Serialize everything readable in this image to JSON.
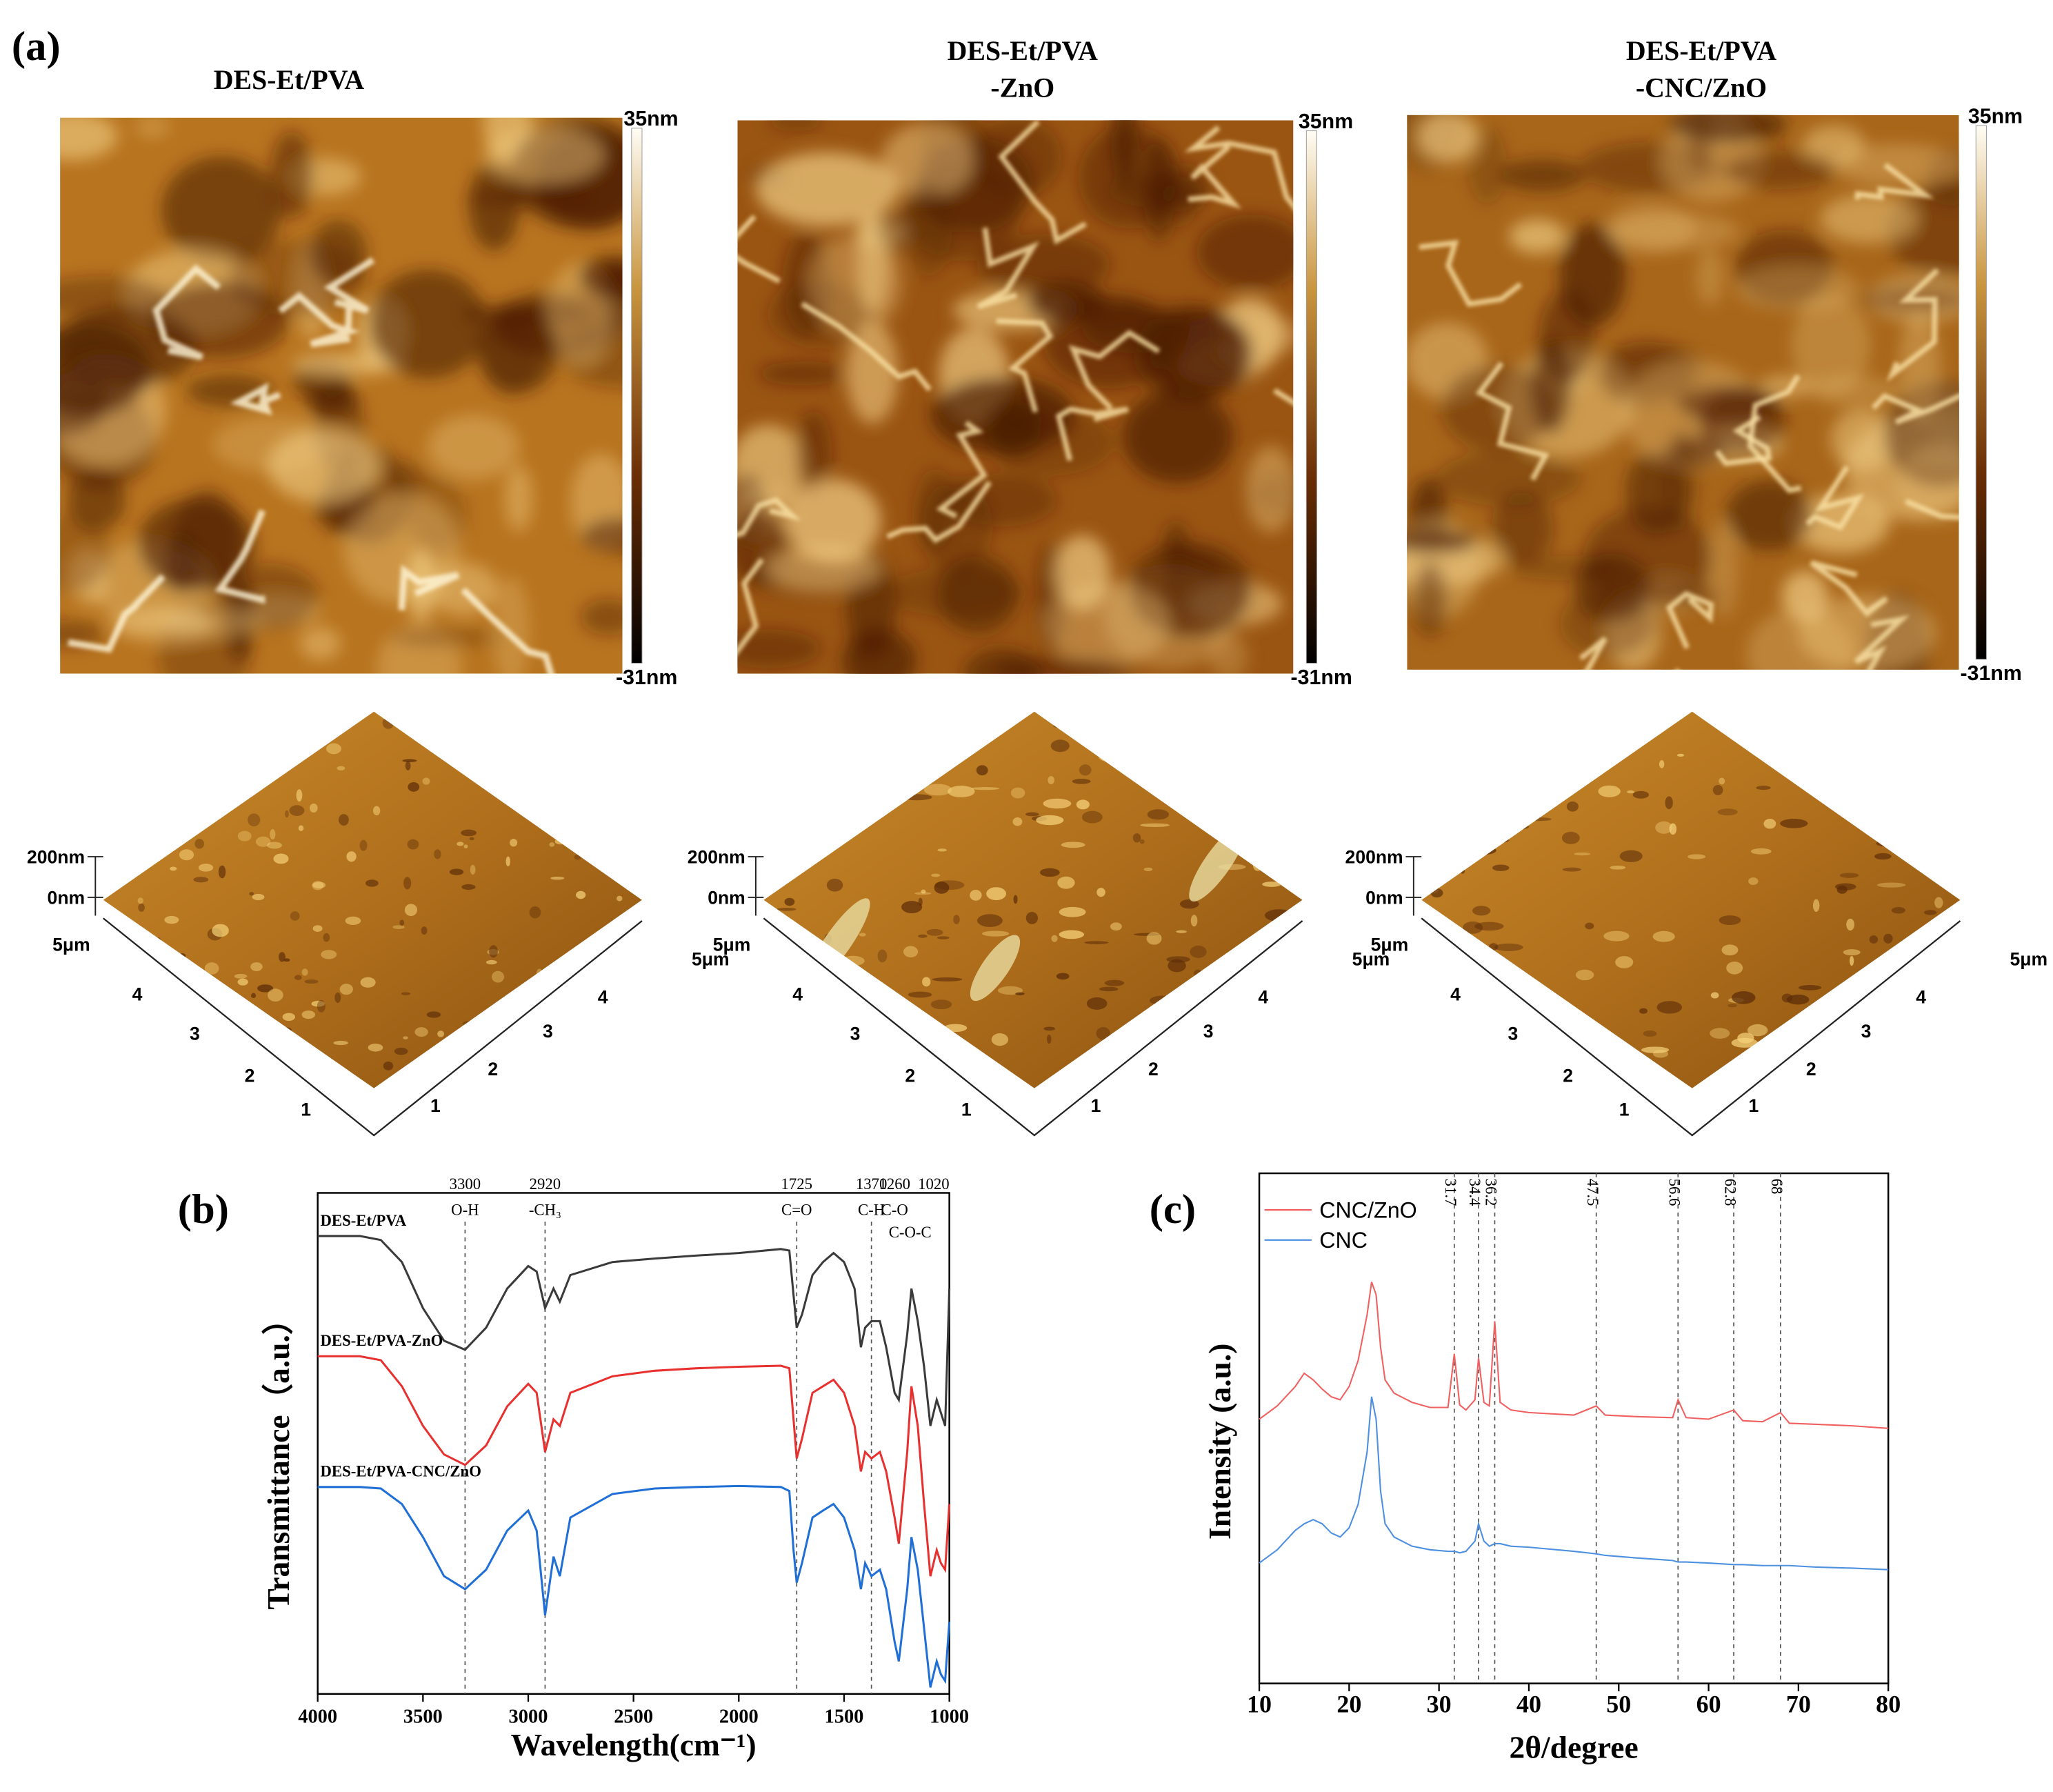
{
  "figure_a": {
    "label": "(a)",
    "samples": [
      {
        "title_lines": [
          "DES-Et/PVA"
        ],
        "scale_max": "35nm",
        "scale_min": "-31nm",
        "z_labels": [
          "200nm",
          "0nm"
        ],
        "left_axis": [
          "5μm",
          "4",
          "3",
          "2",
          "1"
        ],
        "right_axis": [
          "5μm",
          "4",
          "3",
          "2",
          "1"
        ]
      },
      {
        "title_lines": [
          "DES-Et/PVA",
          "-ZnO"
        ],
        "scale_max": "35nm",
        "scale_min": "-31nm",
        "z_labels": [
          "200nm",
          "0nm"
        ],
        "left_axis": [
          "5μm",
          "4",
          "3",
          "2",
          "1"
        ],
        "right_axis": [
          "5μm",
          "4",
          "3",
          "2",
          "1"
        ]
      },
      {
        "title_lines": [
          "DES-Et/PVA",
          "-CNC/ZnO"
        ],
        "scale_max": "35nm",
        "scale_min": "-31nm",
        "z_labels": [
          "200nm",
          "0nm"
        ],
        "left_axis": [
          "5μm",
          "4",
          "3",
          "2",
          "1"
        ],
        "right_axis": [
          "5μm",
          "4",
          "3",
          "2",
          "1"
        ]
      }
    ]
  },
  "chart_data": [
    {
      "type": "line",
      "panel_label": "(b)",
      "x_label": "Wavelength(cm⁻¹)",
      "y_label": "Transmittance（a.u.）",
      "xlim": [
        4000,
        1000
      ],
      "xticks": [
        4000,
        3500,
        3000,
        2500,
        2000,
        1500,
        1000
      ],
      "ylim": [
        0,
        100
      ],
      "x": [
        4000,
        3800,
        3700,
        3600,
        3500,
        3400,
        3300,
        3200,
        3100,
        3000,
        2960,
        2920,
        2880,
        2850,
        2800,
        2600,
        2400,
        2200,
        2000,
        1800,
        1760,
        1740,
        1725,
        1700,
        1650,
        1600,
        1550,
        1500,
        1450,
        1420,
        1400,
        1370,
        1330,
        1300,
        1260,
        1240,
        1200,
        1180,
        1150,
        1120,
        1090,
        1060,
        1040,
        1020,
        1000
      ],
      "series": [
        {
          "name": "DES-Et/PVA",
          "color": "#3a3a3a",
          "values": [
            91.4,
            91.4,
            90.6,
            86.2,
            77.0,
            70.5,
            68.7,
            73.1,
            80.9,
            85.4,
            84.3,
            77.0,
            80.9,
            78.3,
            83.6,
            86.2,
            86.9,
            87.5,
            88.0,
            88.8,
            88.5,
            79.6,
            73.1,
            75.7,
            83.6,
            86.2,
            88.0,
            86.2,
            80.9,
            69.2,
            73.1,
            74.4,
            74.4,
            69.2,
            60.1,
            58.7,
            71.8,
            80.9,
            74.4,
            65.3,
            53.5,
            58.7,
            56.1,
            53.5,
            80.9
          ]
        },
        {
          "name": "DES-Et/PVA-ZnO",
          "color": "#e8312f",
          "values": [
            67.4,
            67.4,
            66.6,
            61.4,
            53.5,
            47.8,
            45.7,
            49.6,
            57.4,
            61.9,
            60.1,
            48.3,
            54.8,
            53.5,
            60.1,
            63.4,
            64.5,
            65.0,
            65.3,
            65.5,
            65.0,
            54.8,
            47.0,
            50.9,
            60.1,
            61.4,
            62.7,
            60.1,
            53.5,
            44.4,
            48.3,
            47.0,
            48.3,
            44.4,
            35.2,
            30.0,
            48.3,
            61.4,
            53.5,
            37.9,
            23.5,
            28.7,
            26.1,
            24.8,
            37.9
          ]
        },
        {
          "name": "DES-Et/PVA-CNC/ZnO",
          "color": "#1f6fd6",
          "values": [
            41.3,
            41.3,
            41.0,
            37.9,
            31.3,
            23.5,
            20.9,
            24.8,
            32.6,
            36.6,
            32.6,
            15.7,
            27.4,
            23.5,
            35.2,
            39.9,
            41.0,
            41.3,
            41.5,
            41.3,
            40.5,
            28.7,
            22.2,
            26.1,
            35.2,
            36.6,
            37.9,
            35.2,
            28.7,
            20.9,
            26.1,
            23.5,
            24.8,
            20.9,
            10.4,
            6.5,
            20.9,
            31.3,
            24.8,
            13.1,
            1.3,
            6.5,
            3.9,
            2.6,
            14.4
          ]
        }
      ],
      "annotations": [
        {
          "x": 3300,
          "note": "O-H",
          "line": true
        },
        {
          "x": 2920,
          "note": "-CH₃",
          "line": true
        },
        {
          "x": 1725,
          "note": "C=O",
          "line": true
        },
        {
          "x": 1370,
          "note": "C-H",
          "line": true
        },
        {
          "x": 1260,
          "note": "C-O",
          "line": false
        },
        {
          "x": 1020,
          "note": "C-O-C",
          "line": false
        }
      ]
    },
    {
      "type": "line",
      "panel_label": "(c)",
      "x_label": "2θ/degree",
      "y_label": "Intensity (a.u.)",
      "xlim": [
        10,
        80
      ],
      "xticks": [
        10,
        20,
        30,
        40,
        50,
        60,
        70,
        80
      ],
      "ylim": [
        0,
        100
      ],
      "legend": "upper left",
      "x": [
        10,
        12,
        14,
        15,
        16,
        17,
        18,
        19,
        20,
        21,
        22,
        22.5,
        23,
        23.5,
        24,
        25,
        27,
        29,
        31,
        31.7,
        32.3,
        33,
        34,
        34.4,
        35,
        35.6,
        36.2,
        36.8,
        38,
        40,
        45,
        47.5,
        48.5,
        52,
        56,
        56.6,
        57.5,
        60,
        62.8,
        63.8,
        66,
        68,
        69,
        72,
        76,
        80
      ],
      "series": [
        {
          "name": "CNC/ZnO",
          "color": "#f06060",
          "values": [
            51.8,
            54.4,
            58.2,
            60.8,
            59.5,
            57.7,
            56.2,
            55.6,
            58.2,
            63.3,
            72.3,
            78.7,
            76.2,
            65.9,
            59.5,
            56.9,
            55.1,
            54.1,
            54.1,
            64.6,
            54.6,
            53.6,
            55.6,
            63.8,
            55.1,
            54.4,
            71.0,
            55.1,
            53.6,
            53.1,
            52.6,
            54.4,
            52.6,
            52.3,
            52.1,
            55.6,
            52.1,
            51.8,
            53.6,
            51.5,
            51.3,
            53.1,
            51.0,
            50.8,
            50.5,
            50.0
          ]
        },
        {
          "name": "CNC",
          "color": "#4d8fe0",
          "values": [
            23.6,
            26.2,
            30.0,
            31.3,
            32.1,
            31.3,
            29.5,
            28.7,
            30.5,
            35.1,
            45.4,
            56.2,
            51.8,
            37.7,
            31.3,
            28.7,
            26.9,
            26.2,
            25.9,
            25.9,
            25.6,
            25.9,
            27.9,
            31.3,
            27.9,
            26.9,
            27.4,
            27.4,
            26.9,
            26.7,
            25.9,
            25.4,
            25.1,
            24.6,
            24.1,
            23.8,
            23.8,
            23.6,
            23.3,
            23.3,
            23.1,
            23.1,
            23.1,
            22.8,
            22.6,
            22.3
          ]
        }
      ],
      "reference_lines": [
        31.7,
        34.4,
        36.2,
        47.5,
        56.6,
        62.8,
        68
      ]
    }
  ]
}
